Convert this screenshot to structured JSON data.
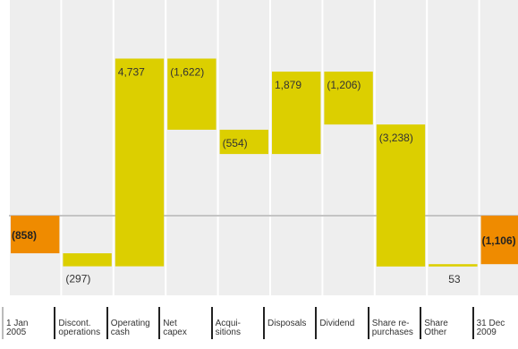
{
  "chart_data": {
    "type": "waterfall",
    "categories": [
      "1 Jan\n2005",
      "Discont.\noperations",
      "Operating\ncash",
      "Net\ncapex",
      "Acqui-\nsitions",
      "Disposals",
      "Dividend",
      "Share re-\npurchases",
      "Share\nOther",
      "31 Dec\n2009"
    ],
    "values": [
      -858,
      -297,
      4737,
      -1622,
      -554,
      1879,
      -1206,
      -3238,
      53,
      -1106
    ],
    "value_labels": [
      "(858)",
      "(297)",
      "4,737",
      "(1,622)",
      "(554)",
      "1,879",
      "(1,206)",
      "(3,238)",
      "53",
      "(1,106)"
    ],
    "colors": [
      "#ef8b00",
      "#dccf00",
      "#dccf00",
      "#dccf00",
      "#dccf00",
      "#dccf00",
      "#dccf00",
      "#dccf00",
      "#dccf00",
      "#ef8b00"
    ]
  }
}
